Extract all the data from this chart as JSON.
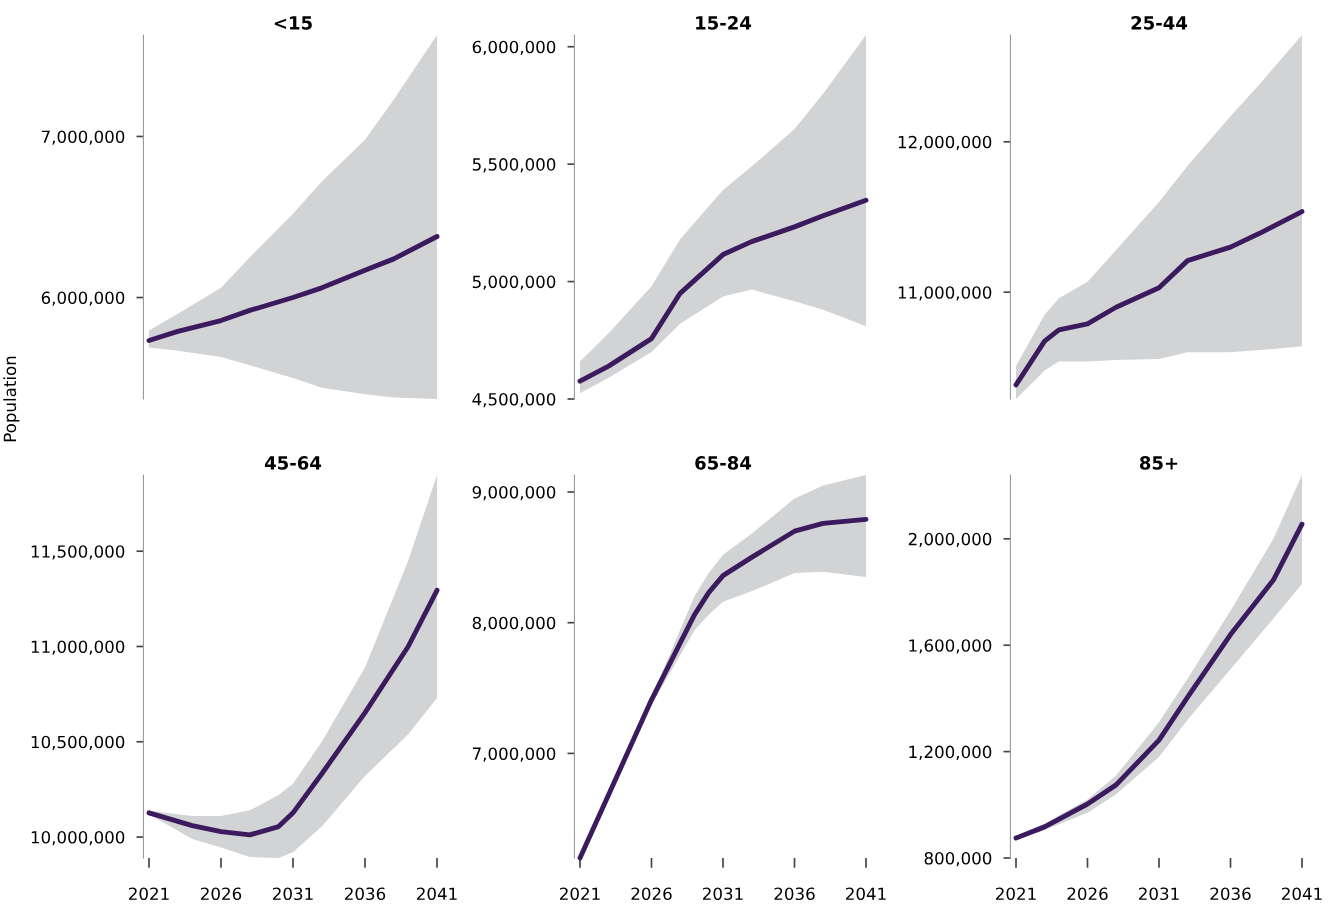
{
  "chart_data": [
    {
      "type": "line",
      "title": "<15",
      "ylabel": "Population",
      "x": [
        2021,
        2023,
        2026,
        2028,
        2031,
        2033,
        2036,
        2038,
        2041
      ],
      "series": [
        {
          "color": "#3b1a5e",
          "values": [
            5733000,
            5790000,
            5857000,
            5920000,
            6000000,
            6060000,
            6170000,
            6240000,
            6379000
          ],
          "lower": [
            5690000,
            5670000,
            5630000,
            5580000,
            5500000,
            5440000,
            5400000,
            5380000,
            5370000
          ],
          "upper": [
            5795000,
            5900000,
            6060000,
            6250000,
            6520000,
            6720000,
            6980000,
            7230000,
            7630000
          ]
        }
      ],
      "xlim": [
        2021,
        2041
      ],
      "xticks": [
        2021,
        2026,
        2031,
        2036,
        2041
      ],
      "yticks": [
        {
          "value": 6000000,
          "label": "6,000,000"
        },
        {
          "value": 7000000,
          "label": "7,000,000"
        }
      ],
      "ylim": [
        5370000,
        7630000
      ],
      "tick_labels": "y",
      "grid": false,
      "legend": false
    },
    {
      "type": "line",
      "title": "15-24",
      "x": [
        2021,
        2023,
        2026,
        2028,
        2031,
        2033,
        2036,
        2038,
        2041
      ],
      "series": [
        {
          "color": "#3b1a5e",
          "values": [
            4576000,
            4640000,
            4757000,
            4950000,
            5115000,
            5170000,
            5233000,
            5280000,
            5346000
          ],
          "lower": [
            4525000,
            4590000,
            4700000,
            4820000,
            4937000,
            4966000,
            4916000,
            4880000,
            4810000
          ],
          "upper": [
            4660000,
            4780000,
            4980000,
            5180000,
            5390000,
            5490000,
            5650000,
            5800000,
            6050000
          ]
        }
      ],
      "xlim": [
        2021,
        2041
      ],
      "xticks": [
        2021,
        2026,
        2031,
        2036,
        2041
      ],
      "yticks": [
        {
          "value": 4500000,
          "label": "4,500,000"
        },
        {
          "value": 5000000,
          "label": "5,000,000"
        },
        {
          "value": 5500000,
          "label": "5,500,000"
        },
        {
          "value": 6000000,
          "label": "6,000,000"
        }
      ],
      "ylim": [
        4500000,
        6050000
      ],
      "tick_labels": "y",
      "grid": false,
      "legend": false
    },
    {
      "type": "line",
      "title": "25-44",
      "x": [
        2021,
        2023,
        2024,
        2026,
        2028,
        2031,
        2033,
        2036,
        2038,
        2041
      ],
      "series": [
        {
          "color": "#3b1a5e",
          "values": [
            10384000,
            10675000,
            10750000,
            10790000,
            10900000,
            11030000,
            11210000,
            11300000,
            11390000,
            11536000
          ],
          "lower": [
            10290000,
            10480000,
            10540000,
            10540000,
            10550000,
            10556000,
            10600000,
            10600000,
            10615000,
            10640000
          ],
          "upper": [
            10510000,
            10850000,
            10960000,
            11070000,
            11280000,
            11600000,
            11840000,
            12170000,
            12380000,
            12710000
          ]
        }
      ],
      "xlim": [
        2021,
        2041
      ],
      "xticks": [
        2021,
        2026,
        2031,
        2036,
        2041
      ],
      "yticks": [
        {
          "value": 11000000,
          "label": "11,000,000"
        },
        {
          "value": 12000000,
          "label": "12,000,000"
        }
      ],
      "ylim": [
        10290000,
        12710000
      ],
      "tick_labels": "y",
      "grid": false,
      "legend": false
    },
    {
      "type": "line",
      "title": "45-64",
      "x": [
        2021,
        2024,
        2026,
        2028,
        2030,
        2031,
        2033,
        2036,
        2039,
        2041
      ],
      "series": [
        {
          "color": "#3b1a5e",
          "values": [
            10127000,
            10060000,
            10028000,
            10011000,
            10055000,
            10127000,
            10332000,
            10653000,
            11000000,
            11295000
          ],
          "lower": [
            10120000,
            9990000,
            9945000,
            9895000,
            9890000,
            9920000,
            10055000,
            10320000,
            10540000,
            10730000
          ],
          "upper": [
            10138000,
            10110000,
            10110000,
            10140000,
            10220000,
            10280000,
            10500000,
            10890000,
            11450000,
            11900000
          ]
        }
      ],
      "xlim": [
        2021,
        2041
      ],
      "xticks": [
        2021,
        2026,
        2031,
        2036,
        2041
      ],
      "yticks": [
        {
          "value": 10000000,
          "label": "10,000,000"
        },
        {
          "value": 10500000,
          "label": "10,500,000"
        },
        {
          "value": 11000000,
          "label": "11,000,000"
        },
        {
          "value": 11500000,
          "label": "11,500,000"
        }
      ],
      "ylim": [
        9890000,
        11900000
      ],
      "grid": false,
      "legend": false
    },
    {
      "type": "line",
      "title": "65-84",
      "x": [
        2021,
        2026,
        2029,
        2030,
        2031,
        2033,
        2036,
        2038,
        2041
      ],
      "series": [
        {
          "color": "#3b1a5e",
          "values": [
            6200000,
            7410000,
            8060000,
            8230000,
            8360000,
            8500000,
            8700000,
            8760000,
            8790000
          ],
          "lower": [
            6200000,
            7370000,
            7940000,
            8060000,
            8160000,
            8240000,
            8380000,
            8390000,
            8350000
          ],
          "upper": [
            6200000,
            7430000,
            8200000,
            8380000,
            8520000,
            8680000,
            8950000,
            9050000,
            9130000
          ]
        }
      ],
      "xlim": [
        2021,
        2041
      ],
      "xticks": [
        2021,
        2026,
        2031,
        2036,
        2041
      ],
      "yticks": [
        {
          "value": 7000000,
          "label": "7,000,000"
        },
        {
          "value": 8000000,
          "label": "8,000,000"
        },
        {
          "value": 9000000,
          "label": "9,000,000"
        }
      ],
      "ylim": [
        6200000,
        9130000
      ],
      "grid": false,
      "legend": false
    },
    {
      "type": "line",
      "title": "85+",
      "x": [
        2021,
        2023,
        2026,
        2028,
        2031,
        2033,
        2036,
        2039,
        2041
      ],
      "series": [
        {
          "color": "#3b1a5e",
          "values": [
            875000,
            917000,
            1003000,
            1075000,
            1243000,
            1405000,
            1640000,
            1845000,
            2055000
          ],
          "lower": [
            870000,
            905000,
            970000,
            1040000,
            1180000,
            1320000,
            1510000,
            1700000,
            1830000
          ],
          "upper": [
            880000,
            930000,
            1020000,
            1110000,
            1310000,
            1475000,
            1730000,
            2000000,
            2240000
          ]
        }
      ],
      "xlim": [
        2021,
        2041
      ],
      "xticks": [
        2021,
        2026,
        2031,
        2036,
        2041
      ],
      "yticks": [
        {
          "value": 800000,
          "label": "800,000"
        },
        {
          "value": 1200000,
          "label": "1,200,000"
        },
        {
          "value": 1600000,
          "label": "1,600,000"
        },
        {
          "value": 2000000,
          "label": "2,000,000"
        }
      ],
      "ylim": [
        800000,
        2240000
      ],
      "grid": false,
      "legend": false
    }
  ]
}
